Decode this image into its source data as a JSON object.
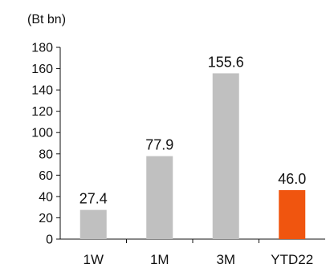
{
  "chart_data": {
    "type": "bar",
    "unit_label": "(Bt bn)",
    "categories": [
      "1W",
      "1M",
      "3M",
      "YTD22"
    ],
    "values": [
      27.4,
      77.9,
      155.6,
      46.0
    ],
    "data_labels": [
      "27.4",
      "77.9",
      "155.6",
      "46.0"
    ],
    "ylim": [
      0,
      180
    ],
    "yticks": [
      "0",
      "20",
      "40",
      "60",
      "80",
      "100",
      "120",
      "140",
      "160",
      "180"
    ],
    "grid": false,
    "legend": "none",
    "colors": [
      "#c0c0c0",
      "#c0c0c0",
      "#c0c0c0",
      "#f0550f"
    ]
  }
}
